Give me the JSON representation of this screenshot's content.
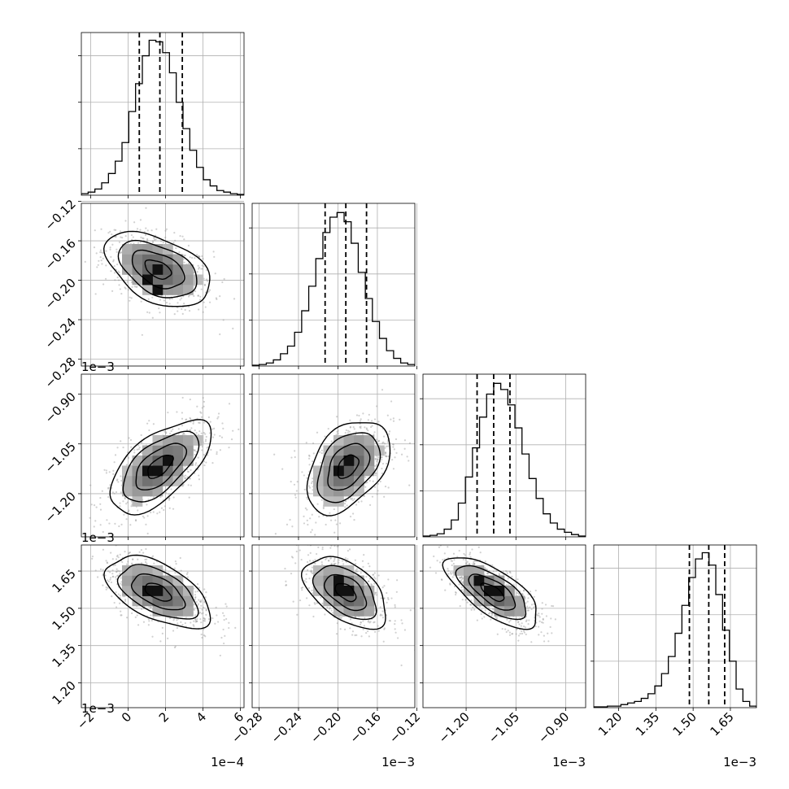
{
  "chart_data": {
    "type": "corner",
    "grid": true,
    "parameters": [
      {
        "range": [
          -2.5,
          6.2
        ],
        "ticks": [
          -2,
          0,
          2,
          4,
          6
        ],
        "tick_labels": [
          "−2",
          "0",
          "2",
          "4",
          "6"
        ],
        "offset_label": "1e−4",
        "quantiles": [
          0.6,
          1.7,
          2.9
        ],
        "histogram": [
          1,
          2,
          4,
          8,
          14,
          22,
          34,
          54,
          72,
          90,
          100,
          99,
          92,
          79,
          60,
          43,
          29,
          18,
          10,
          6,
          3,
          2,
          1,
          0.5
        ],
        "hist_ymax": 105
      },
      {
        "range": [
          -0.287,
          -0.122
        ],
        "ticks": [
          -0.28,
          -0.24,
          -0.2,
          -0.16,
          -0.12
        ],
        "tick_labels": [
          "−0.28",
          "−0.24",
          "−0.20",
          "−0.16",
          "−0.12"
        ],
        "offset_label": "1e−3",
        "quantiles": [
          -0.213,
          -0.192,
          -0.171
        ],
        "histogram": [
          0.5,
          1,
          2,
          4,
          8,
          13,
          22,
          36,
          52,
          70,
          87,
          97,
          100,
          94,
          80,
          61,
          44,
          29,
          18,
          10,
          5,
          2,
          1
        ],
        "hist_ymax": 106
      },
      {
        "range": [
          -1.33,
          -0.84
        ],
        "ticks": [
          -1.2,
          -1.05,
          -0.9
        ],
        "tick_labels": [
          "−1.20",
          "−1.05",
          "−0.90"
        ],
        "offset_label": "1e−3",
        "quantiles": [
          -1.167,
          -1.117,
          -1.068
        ],
        "histogram": [
          0.5,
          1,
          2,
          5,
          11,
          22,
          39,
          58,
          78,
          93,
          100,
          96,
          86,
          71,
          54,
          38,
          25,
          15,
          9,
          5,
          3,
          1.5,
          0.5
        ],
        "hist_ymax": 106
      },
      {
        "range": [
          1.1,
          1.755
        ],
        "ticks": [
          1.2,
          1.35,
          1.5,
          1.65
        ],
        "tick_labels": [
          "1.20",
          "1.35",
          "1.50",
          "1.65"
        ],
        "offset_label": "1e−3",
        "quantiles": [
          1.485,
          1.563,
          1.627
        ],
        "histogram": [
          0.5,
          0.5,
          1,
          1,
          2,
          3,
          4,
          6,
          9,
          14,
          22,
          33,
          48,
          66,
          84,
          96,
          100,
          92,
          73,
          50,
          30,
          12,
          4,
          1
        ],
        "hist_ymax": 105
      }
    ],
    "pairs": [
      {
        "x": 0,
        "y": 1,
        "center": [
          1.6,
          -0.189
        ],
        "sd": [
          1.4,
          0.019
        ],
        "rho": -0.45,
        "peaks": [
          [
            0.9,
            -0.197
          ],
          [
            1.3,
            -0.203
          ],
          [
            1.8,
            -0.21
          ],
          [
            1.5,
            -0.186
          ]
        ]
      },
      {
        "x": 0,
        "y": 2,
        "center": [
          1.7,
          -1.118
        ],
        "sd": [
          1.35,
          0.07
        ],
        "rho": 0.62,
        "peaks": [
          [
            1.7,
            -1.13
          ],
          [
            2.2,
            -1.1
          ],
          [
            1.2,
            -1.14
          ]
        ]
      },
      {
        "x": 1,
        "y": 2,
        "center": [
          -0.19,
          -1.118
        ],
        "sd": [
          0.021,
          0.07
        ],
        "rho": 0.42,
        "peaks": [
          [
            -0.188,
            -1.1
          ],
          [
            -0.196,
            -1.135
          ]
        ]
      },
      {
        "x": 0,
        "y": 3,
        "center": [
          1.6,
          1.565
        ],
        "sd": [
          1.4,
          0.072
        ],
        "rho": -0.55,
        "peaks": [
          [
            1.3,
            1.59
          ],
          [
            1.8,
            1.57
          ],
          [
            1.1,
            1.56
          ]
        ]
      },
      {
        "x": 1,
        "y": 3,
        "center": [
          -0.192,
          1.565
        ],
        "sd": [
          0.021,
          0.072
        ],
        "rho": -0.5,
        "peaks": [
          [
            -0.198,
            1.595
          ],
          [
            -0.2,
            1.57
          ],
          [
            -0.186,
            1.56
          ]
        ]
      },
      {
        "x": 2,
        "y": 3,
        "center": [
          -1.12,
          1.565
        ],
        "sd": [
          0.07,
          0.072
        ],
        "rho": -0.7,
        "peaks": [
          [
            -1.16,
            1.6
          ],
          [
            -1.13,
            1.58
          ],
          [
            -1.11,
            1.56
          ]
        ]
      }
    ],
    "contour_levels_sigma": [
      0.5,
      1.0,
      1.5,
      2.0
    ]
  }
}
